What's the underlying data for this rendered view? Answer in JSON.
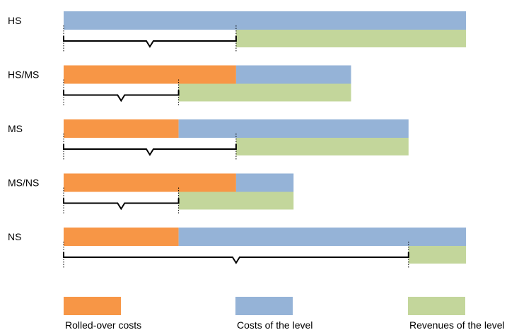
{
  "colors": {
    "rolled_over": "#F79646",
    "costs": "#95B3D7",
    "revenues": "#C3D69B"
  },
  "unit_scale_max": 7,
  "levels": [
    {
      "name": "HS",
      "rolled": 0,
      "costs": 7,
      "revenue_start": 3,
      "revenue_end": 7
    },
    {
      "name": "HS/MS",
      "rolled": 3,
      "costs": 2,
      "revenue_start": 2,
      "revenue_end": 5
    },
    {
      "name": "MS",
      "rolled": 2,
      "costs": 4,
      "revenue_start": 3,
      "revenue_end": 6
    },
    {
      "name": "MS/NS",
      "rolled": 3,
      "costs": 1,
      "revenue_start": 2,
      "revenue_end": 4
    },
    {
      "name": "NS",
      "rolled": 2,
      "costs": 5,
      "revenue_start": 6,
      "revenue_end": 7
    }
  ],
  "legend": [
    {
      "key": "rolled_over",
      "label": "Rolled-over costs"
    },
    {
      "key": "costs",
      "label": "Costs of the level"
    },
    {
      "key": "revenues",
      "label": "Revenues of the level"
    }
  ]
}
